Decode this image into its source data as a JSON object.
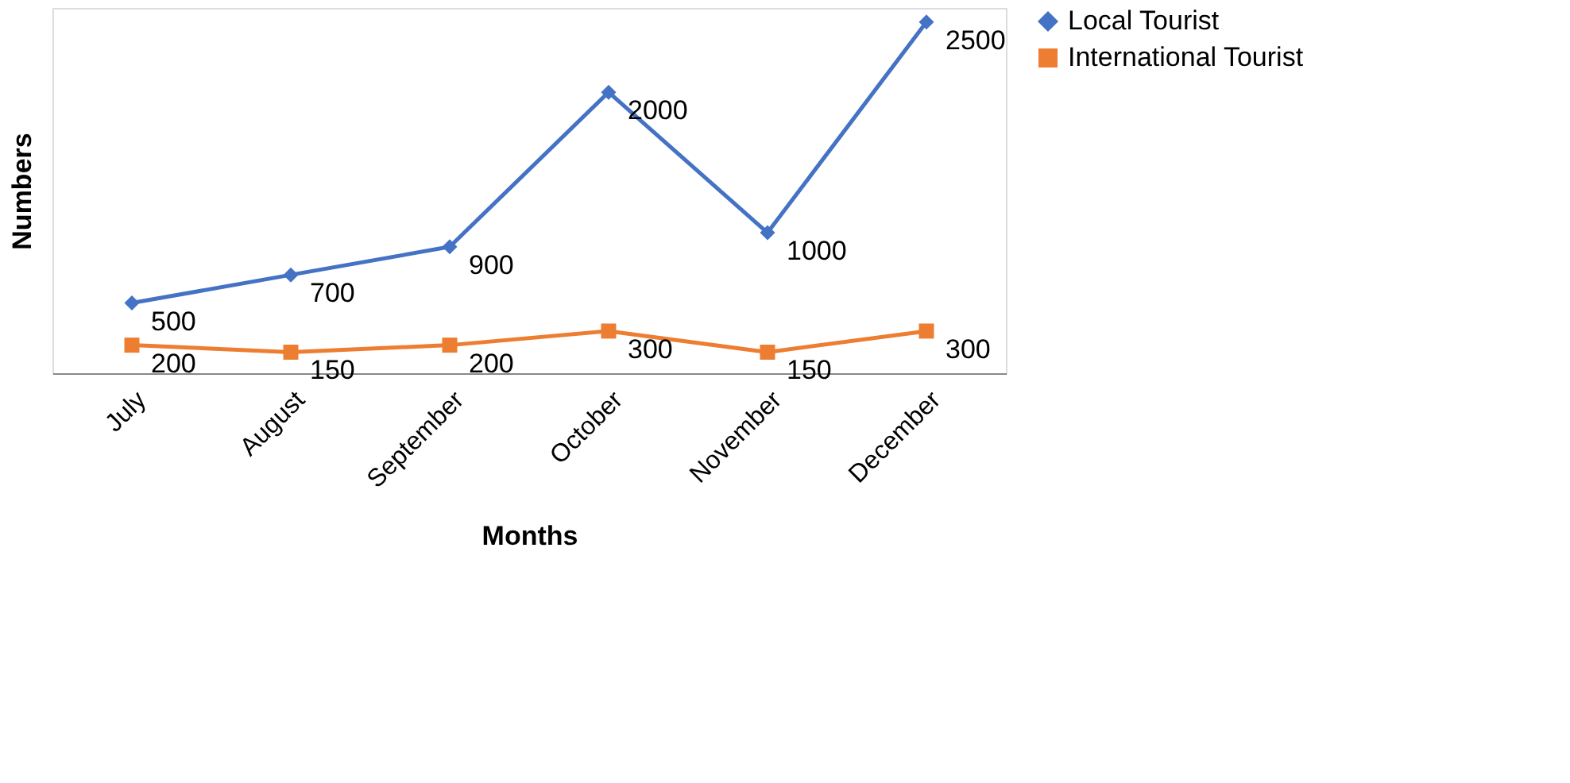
{
  "chart_data": {
    "type": "line",
    "xlabel": "Months",
    "ylabel": "Numbers",
    "categories": [
      "July",
      "August",
      "September",
      "October",
      "November",
      "December"
    ],
    "series": [
      {
        "name": "Local Tourist",
        "color": "#4472c4",
        "marker": "diamond",
        "values": [
          500,
          700,
          900,
          2000,
          1000,
          2500
        ]
      },
      {
        "name": "International Tourist",
        "color": "#ed7d31",
        "marker": "square",
        "values": [
          200,
          150,
          200,
          300,
          150,
          300
        ]
      }
    ],
    "data_labels": true,
    "legend": "right",
    "grid": false,
    "tick_labels": "x"
  }
}
